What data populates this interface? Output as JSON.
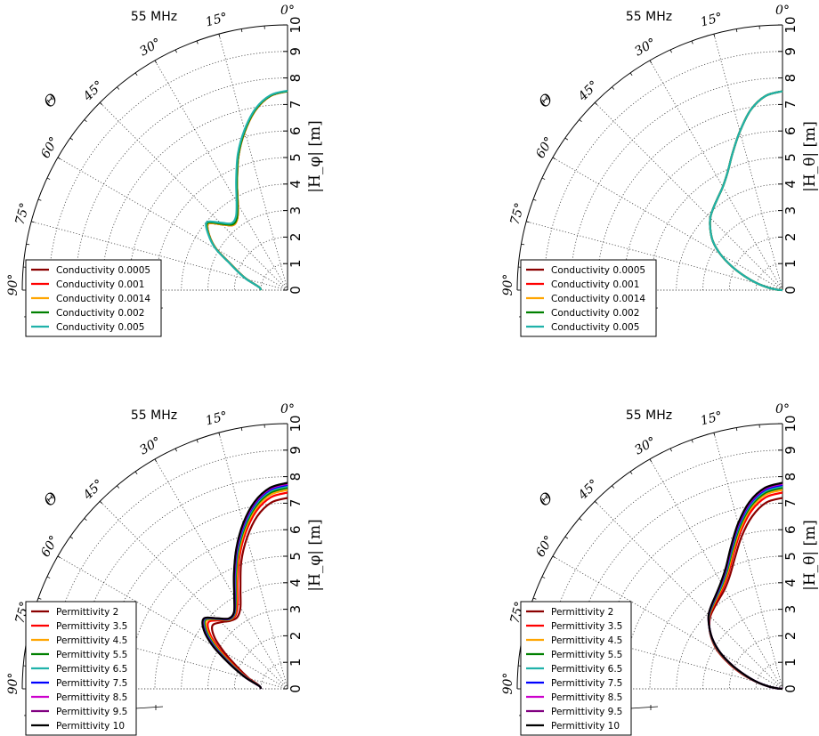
{
  "chart_data": [
    {
      "type": "line",
      "projection": "polar-quadrant",
      "title": "55 MHz",
      "ylabel": "|H_φ| [m]",
      "theta_label": "Θ",
      "theta_ticks": [
        "0°",
        "15°",
        "30°",
        "45°",
        "60°",
        "75°",
        "90°"
      ],
      "r_ticks": [
        "0",
        "1",
        "2",
        "3",
        "4",
        "5",
        "6",
        "7",
        "8",
        "9",
        "10"
      ],
      "rlim": [
        0,
        10
      ],
      "theta_range_deg": [
        0,
        90
      ],
      "grid": true,
      "legend_position": "lower-left",
      "theta_deg": [
        0,
        5,
        10,
        15,
        20,
        25,
        30,
        35,
        40,
        45,
        50,
        55,
        60,
        65,
        70,
        75,
        80,
        85,
        90
      ],
      "series": [
        {
          "name": "Conductivity 0.0005",
          "color": "#8b0000",
          "values": [
            7.5,
            7.35,
            6.9,
            6.2,
            5.4,
            4.5,
            3.75,
            3.3,
            3.2,
            3.5,
            3.9,
            3.6,
            3.1,
            2.4,
            1.95,
            1.6,
            1.25,
            1.05,
            1.0
          ]
        },
        {
          "name": "Conductivity 0.001",
          "color": "#ff0000",
          "values": [
            7.5,
            7.35,
            6.9,
            6.2,
            5.4,
            4.5,
            3.75,
            3.3,
            3.2,
            3.5,
            3.9,
            3.6,
            3.1,
            2.4,
            1.95,
            1.6,
            1.25,
            1.05,
            1.0
          ]
        },
        {
          "name": "Conductivity 0.0014",
          "color": "#ffa500",
          "values": [
            7.5,
            7.35,
            6.9,
            6.2,
            5.4,
            4.5,
            3.75,
            3.3,
            3.2,
            3.5,
            3.9,
            3.6,
            3.1,
            2.4,
            1.95,
            1.6,
            1.25,
            1.05,
            1.0
          ]
        },
        {
          "name": "Conductivity 0.002",
          "color": "#008000",
          "values": [
            7.5,
            7.36,
            6.92,
            6.22,
            5.42,
            4.52,
            3.78,
            3.33,
            3.23,
            3.54,
            3.94,
            3.62,
            3.12,
            2.41,
            1.96,
            1.6,
            1.25,
            1.05,
            1.0
          ]
        },
        {
          "name": "Conductivity 0.005",
          "color": "#20b2aa",
          "values": [
            7.52,
            7.38,
            6.95,
            6.26,
            5.47,
            4.58,
            3.84,
            3.39,
            3.29,
            3.6,
            3.98,
            3.64,
            3.13,
            2.42,
            1.97,
            1.61,
            1.26,
            1.05,
            1.0
          ]
        }
      ]
    },
    {
      "type": "line",
      "projection": "polar-quadrant",
      "title": "55 MHz",
      "ylabel": "|H_θ| [m]",
      "theta_label": "Θ",
      "theta_ticks": [
        "0°",
        "15°",
        "30°",
        "45°",
        "60°",
        "75°",
        "90°"
      ],
      "r_ticks": [
        "0",
        "1",
        "2",
        "3",
        "4",
        "5",
        "6",
        "7",
        "8",
        "9",
        "10"
      ],
      "rlim": [
        0,
        10
      ],
      "theta_range_deg": [
        0,
        90
      ],
      "grid": true,
      "legend_position": "lower-left",
      "theta_deg": [
        0,
        5,
        10,
        15,
        20,
        25,
        30,
        35,
        40,
        45,
        50,
        55,
        60,
        65,
        70,
        75,
        80,
        85,
        90
      ],
      "series": [
        {
          "name": "Conductivity 0.0005",
          "color": "#8b0000",
          "values": [
            7.5,
            7.35,
            6.9,
            6.2,
            5.5,
            4.9,
            4.5,
            4.25,
            4.05,
            3.85,
            3.55,
            3.2,
            2.7,
            2.1,
            1.5,
            1.0,
            0.55,
            0.2,
            0.0
          ]
        },
        {
          "name": "Conductivity 0.001",
          "color": "#ff0000",
          "values": [
            7.5,
            7.35,
            6.9,
            6.2,
            5.5,
            4.9,
            4.5,
            4.25,
            4.05,
            3.85,
            3.55,
            3.2,
            2.7,
            2.1,
            1.5,
            1.0,
            0.55,
            0.2,
            0.0
          ]
        },
        {
          "name": "Conductivity 0.0014",
          "color": "#ffa500",
          "values": [
            7.5,
            7.35,
            6.9,
            6.2,
            5.5,
            4.9,
            4.5,
            4.25,
            4.05,
            3.85,
            3.55,
            3.2,
            2.7,
            2.1,
            1.5,
            1.0,
            0.55,
            0.2,
            0.0
          ]
        },
        {
          "name": "Conductivity 0.002",
          "color": "#008000",
          "values": [
            7.5,
            7.35,
            6.9,
            6.2,
            5.5,
            4.9,
            4.5,
            4.25,
            4.05,
            3.85,
            3.55,
            3.2,
            2.7,
            2.1,
            1.5,
            1.0,
            0.55,
            0.2,
            0.0
          ]
        },
        {
          "name": "Conductivity 0.005",
          "color": "#20b2aa",
          "values": [
            7.5,
            7.35,
            6.9,
            6.2,
            5.5,
            4.9,
            4.5,
            4.25,
            4.05,
            3.85,
            3.55,
            3.2,
            2.7,
            2.1,
            1.5,
            1.0,
            0.55,
            0.2,
            0.0
          ]
        }
      ]
    },
    {
      "type": "line",
      "projection": "polar-quadrant",
      "title": "55 MHz",
      "ylabel": "|H_φ| [m]",
      "theta_label": "Θ",
      "theta_ticks": [
        "0°",
        "15°",
        "30°",
        "45°",
        "60°",
        "75°",
        "90°"
      ],
      "r_ticks": [
        "0",
        "1",
        "2",
        "3",
        "4",
        "5",
        "6",
        "7",
        "8",
        "9",
        "10"
      ],
      "rlim": [
        0,
        10
      ],
      "theta_range_deg": [
        0,
        90
      ],
      "grid": true,
      "legend_position": "lower-left",
      "theta_deg": [
        0,
        5,
        10,
        15,
        20,
        25,
        30,
        35,
        40,
        45,
        50,
        55,
        60,
        65,
        70,
        75,
        80,
        85,
        90
      ],
      "series": [
        {
          "name": "Permittivity 2",
          "color": "#8b0000",
          "values": [
            7.2,
            7.05,
            6.6,
            5.9,
            5.1,
            4.2,
            3.55,
            3.3,
            3.35,
            3.55,
            3.7,
            3.35,
            2.75,
            2.2,
            1.8,
            1.5,
            1.2,
            1.05,
            1.0
          ]
        },
        {
          "name": "Permittivity 3.5",
          "color": "#ff0000",
          "values": [
            7.4,
            7.25,
            6.8,
            6.1,
            5.3,
            4.45,
            3.75,
            3.4,
            3.4,
            3.65,
            3.9,
            3.55,
            2.95,
            2.35,
            1.9,
            1.55,
            1.23,
            1.05,
            1.0
          ]
        },
        {
          "name": "Permittivity 4.5",
          "color": "#ffa500",
          "values": [
            7.5,
            7.35,
            6.9,
            6.2,
            5.4,
            4.55,
            3.85,
            3.45,
            3.4,
            3.7,
            4.0,
            3.65,
            3.05,
            2.42,
            1.95,
            1.58,
            1.25,
            1.05,
            1.0
          ]
        },
        {
          "name": "Permittivity 5.5",
          "color": "#008000",
          "values": [
            7.58,
            7.42,
            6.97,
            6.27,
            5.47,
            4.62,
            3.9,
            3.47,
            3.42,
            3.72,
            4.05,
            3.72,
            3.12,
            2.47,
            1.98,
            1.6,
            1.26,
            1.05,
            1.0
          ]
        },
        {
          "name": "Permittivity 6.5",
          "color": "#20b2aa",
          "values": [
            7.64,
            7.48,
            7.03,
            6.33,
            5.52,
            4.67,
            3.94,
            3.49,
            3.43,
            3.73,
            4.08,
            3.77,
            3.17,
            2.5,
            2.0,
            1.61,
            1.27,
            1.05,
            1.0
          ]
        },
        {
          "name": "Permittivity 7.5",
          "color": "#0000ff",
          "values": [
            7.69,
            7.53,
            7.08,
            6.38,
            5.56,
            4.71,
            3.97,
            3.5,
            3.44,
            3.74,
            4.1,
            3.8,
            3.21,
            2.53,
            2.02,
            1.62,
            1.27,
            1.05,
            1.0
          ]
        },
        {
          "name": "Permittivity 8.5",
          "color": "#cc00cc",
          "values": [
            7.73,
            7.57,
            7.12,
            6.42,
            5.6,
            4.74,
            3.99,
            3.51,
            3.45,
            3.75,
            4.11,
            3.82,
            3.24,
            2.55,
            2.03,
            1.63,
            1.28,
            1.05,
            1.0
          ]
        },
        {
          "name": "Permittivity 9.5",
          "color": "#800080",
          "values": [
            7.76,
            7.6,
            7.15,
            6.45,
            5.63,
            4.77,
            4.01,
            3.52,
            3.46,
            3.76,
            4.12,
            3.84,
            3.26,
            2.57,
            2.04,
            1.63,
            1.28,
            1.05,
            1.0
          ]
        },
        {
          "name": "Permittivity 10",
          "color": "#000000",
          "values": [
            7.77,
            7.61,
            7.16,
            6.46,
            5.64,
            4.78,
            4.02,
            3.52,
            3.46,
            3.76,
            4.12,
            3.85,
            3.27,
            2.58,
            2.05,
            1.64,
            1.28,
            1.05,
            1.0
          ]
        }
      ]
    },
    {
      "type": "line",
      "projection": "polar-quadrant",
      "title": "55 MHz",
      "ylabel": "|H_θ| [m]",
      "theta_label": "Θ",
      "theta_ticks": [
        "0°",
        "15°",
        "30°",
        "45°",
        "60°",
        "75°",
        "90°"
      ],
      "r_ticks": [
        "0",
        "1",
        "2",
        "3",
        "4",
        "5",
        "6",
        "7",
        "8",
        "9",
        "10"
      ],
      "rlim": [
        0,
        10
      ],
      "theta_range_deg": [
        0,
        90
      ],
      "grid": true,
      "legend_position": "lower-left",
      "theta_deg": [
        0,
        5,
        10,
        15,
        20,
        25,
        30,
        35,
        40,
        45,
        50,
        55,
        60,
        65,
        70,
        75,
        80,
        85,
        90
      ],
      "series": [
        {
          "name": "Permittivity 2",
          "color": "#8b0000",
          "values": [
            7.2,
            7.05,
            6.6,
            5.95,
            5.25,
            4.7,
            4.35,
            4.15,
            4.0,
            3.85,
            3.6,
            3.25,
            2.8,
            2.2,
            1.6,
            1.05,
            0.58,
            0.22,
            0.0
          ]
        },
        {
          "name": "Permittivity 3.5",
          "color": "#ff0000",
          "values": [
            7.4,
            7.25,
            6.8,
            6.12,
            5.4,
            4.82,
            4.45,
            4.22,
            4.05,
            3.88,
            3.6,
            3.24,
            2.76,
            2.16,
            1.56,
            1.03,
            0.57,
            0.21,
            0.0
          ]
        },
        {
          "name": "Permittivity 4.5",
          "color": "#ffa500",
          "values": [
            7.5,
            7.35,
            6.9,
            6.21,
            5.48,
            4.88,
            4.5,
            4.26,
            4.08,
            3.9,
            3.6,
            3.23,
            2.74,
            2.13,
            1.53,
            1.02,
            0.56,
            0.21,
            0.0
          ]
        },
        {
          "name": "Permittivity 5.5",
          "color": "#008000",
          "values": [
            7.58,
            7.42,
            6.97,
            6.28,
            5.54,
            4.93,
            4.54,
            4.29,
            4.1,
            3.91,
            3.6,
            3.22,
            2.72,
            2.11,
            1.51,
            1.01,
            0.56,
            0.2,
            0.0
          ]
        },
        {
          "name": "Permittivity 6.5",
          "color": "#20b2aa",
          "values": [
            7.64,
            7.48,
            7.03,
            6.34,
            5.59,
            4.97,
            4.57,
            4.31,
            4.12,
            3.92,
            3.6,
            3.21,
            2.71,
            2.1,
            1.5,
            1.0,
            0.55,
            0.2,
            0.0
          ]
        },
        {
          "name": "Permittivity 7.5",
          "color": "#0000ff",
          "values": [
            7.69,
            7.53,
            7.08,
            6.38,
            5.63,
            5.0,
            4.6,
            4.33,
            4.13,
            3.93,
            3.6,
            3.21,
            2.7,
            2.09,
            1.49,
            1.0,
            0.55,
            0.2,
            0.0
          ]
        },
        {
          "name": "Permittivity 8.5",
          "color": "#cc00cc",
          "values": [
            7.73,
            7.57,
            7.12,
            6.42,
            5.66,
            5.02,
            4.62,
            4.34,
            4.14,
            3.93,
            3.6,
            3.2,
            2.7,
            2.08,
            1.49,
            0.99,
            0.55,
            0.2,
            0.0
          ]
        },
        {
          "name": "Permittivity 9.5",
          "color": "#800080",
          "values": [
            7.76,
            7.6,
            7.15,
            6.45,
            5.68,
            5.04,
            4.63,
            4.35,
            4.15,
            3.94,
            3.6,
            3.2,
            2.69,
            2.08,
            1.48,
            0.99,
            0.55,
            0.2,
            0.0
          ]
        },
        {
          "name": "Permittivity 10",
          "color": "#000000",
          "values": [
            7.77,
            7.61,
            7.16,
            6.46,
            5.69,
            5.05,
            4.64,
            4.36,
            4.15,
            3.94,
            3.6,
            3.2,
            2.69,
            2.08,
            1.48,
            0.99,
            0.55,
            0.2,
            0.0
          ]
        }
      ]
    }
  ]
}
